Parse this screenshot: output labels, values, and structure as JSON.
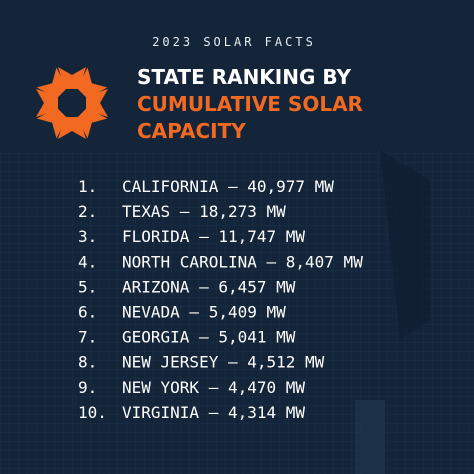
{
  "header": {
    "kicker": "2023 SOLAR FACTS",
    "title_lines": [
      "STATE RANKING BY",
      "CUMULATIVE SOLAR",
      "CAPACITY"
    ]
  },
  "list": {
    "items": [
      {
        "rank": "1.",
        "text": "CALIFORNIA – 40,977 MW"
      },
      {
        "rank": "2.",
        "text": "TEXAS – 18,273 MW"
      },
      {
        "rank": "3.",
        "text": "FLORIDA – 11,747 MW"
      },
      {
        "rank": "4.",
        "text": "NORTH CAROLINA – 8,407 MW"
      },
      {
        "rank": "5.",
        "text": "ARIZONA – 6,457 MW"
      },
      {
        "rank": "6.",
        "text": "NEVADA – 5,409 MW"
      },
      {
        "rank": "7.",
        "text": "GEORGIA – 5,041 MW"
      },
      {
        "rank": "8.",
        "text": "NEW JERSEY – 4,512 MW"
      },
      {
        "rank": "9.",
        "text": "NEW YORK – 4,470 MW"
      },
      {
        "rank": "10.",
        "text": "VIRGINIA – 4,314 MW"
      }
    ]
  }
}
